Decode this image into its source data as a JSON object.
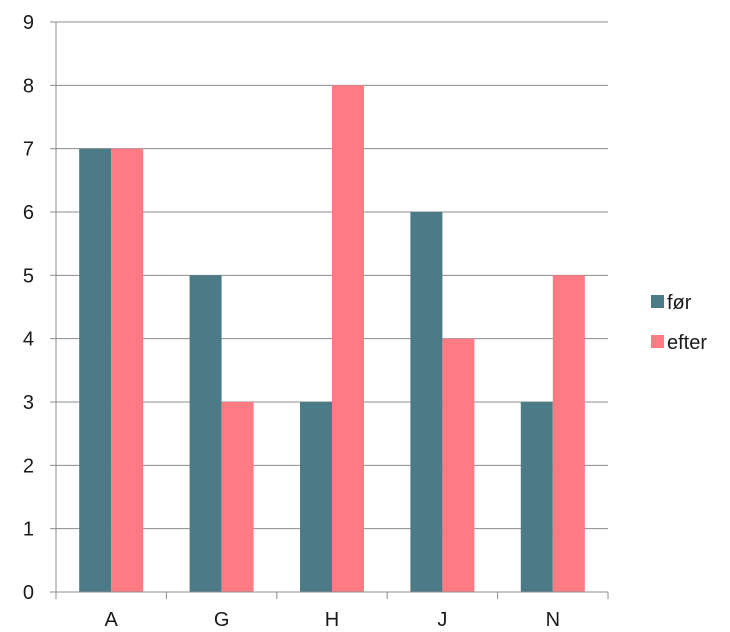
{
  "chart_data": {
    "type": "bar",
    "title": "",
    "xlabel": "",
    "ylabel": "",
    "categories": [
      "A",
      "G",
      "H",
      "J",
      "N"
    ],
    "series": [
      {
        "name": "før",
        "values": [
          7,
          5,
          3,
          6,
          3
        ],
        "color": "#4a7b86"
      },
      {
        "name": "efter",
        "values": [
          7,
          3,
          8,
          4,
          5
        ],
        "color": "#ff7b84"
      }
    ],
    "ylim": [
      0,
      9
    ],
    "yticks": [
      "0",
      "1",
      "2",
      "3",
      "4",
      "5",
      "6",
      "7",
      "8",
      "9"
    ],
    "grid": true,
    "legend_position": "right"
  }
}
